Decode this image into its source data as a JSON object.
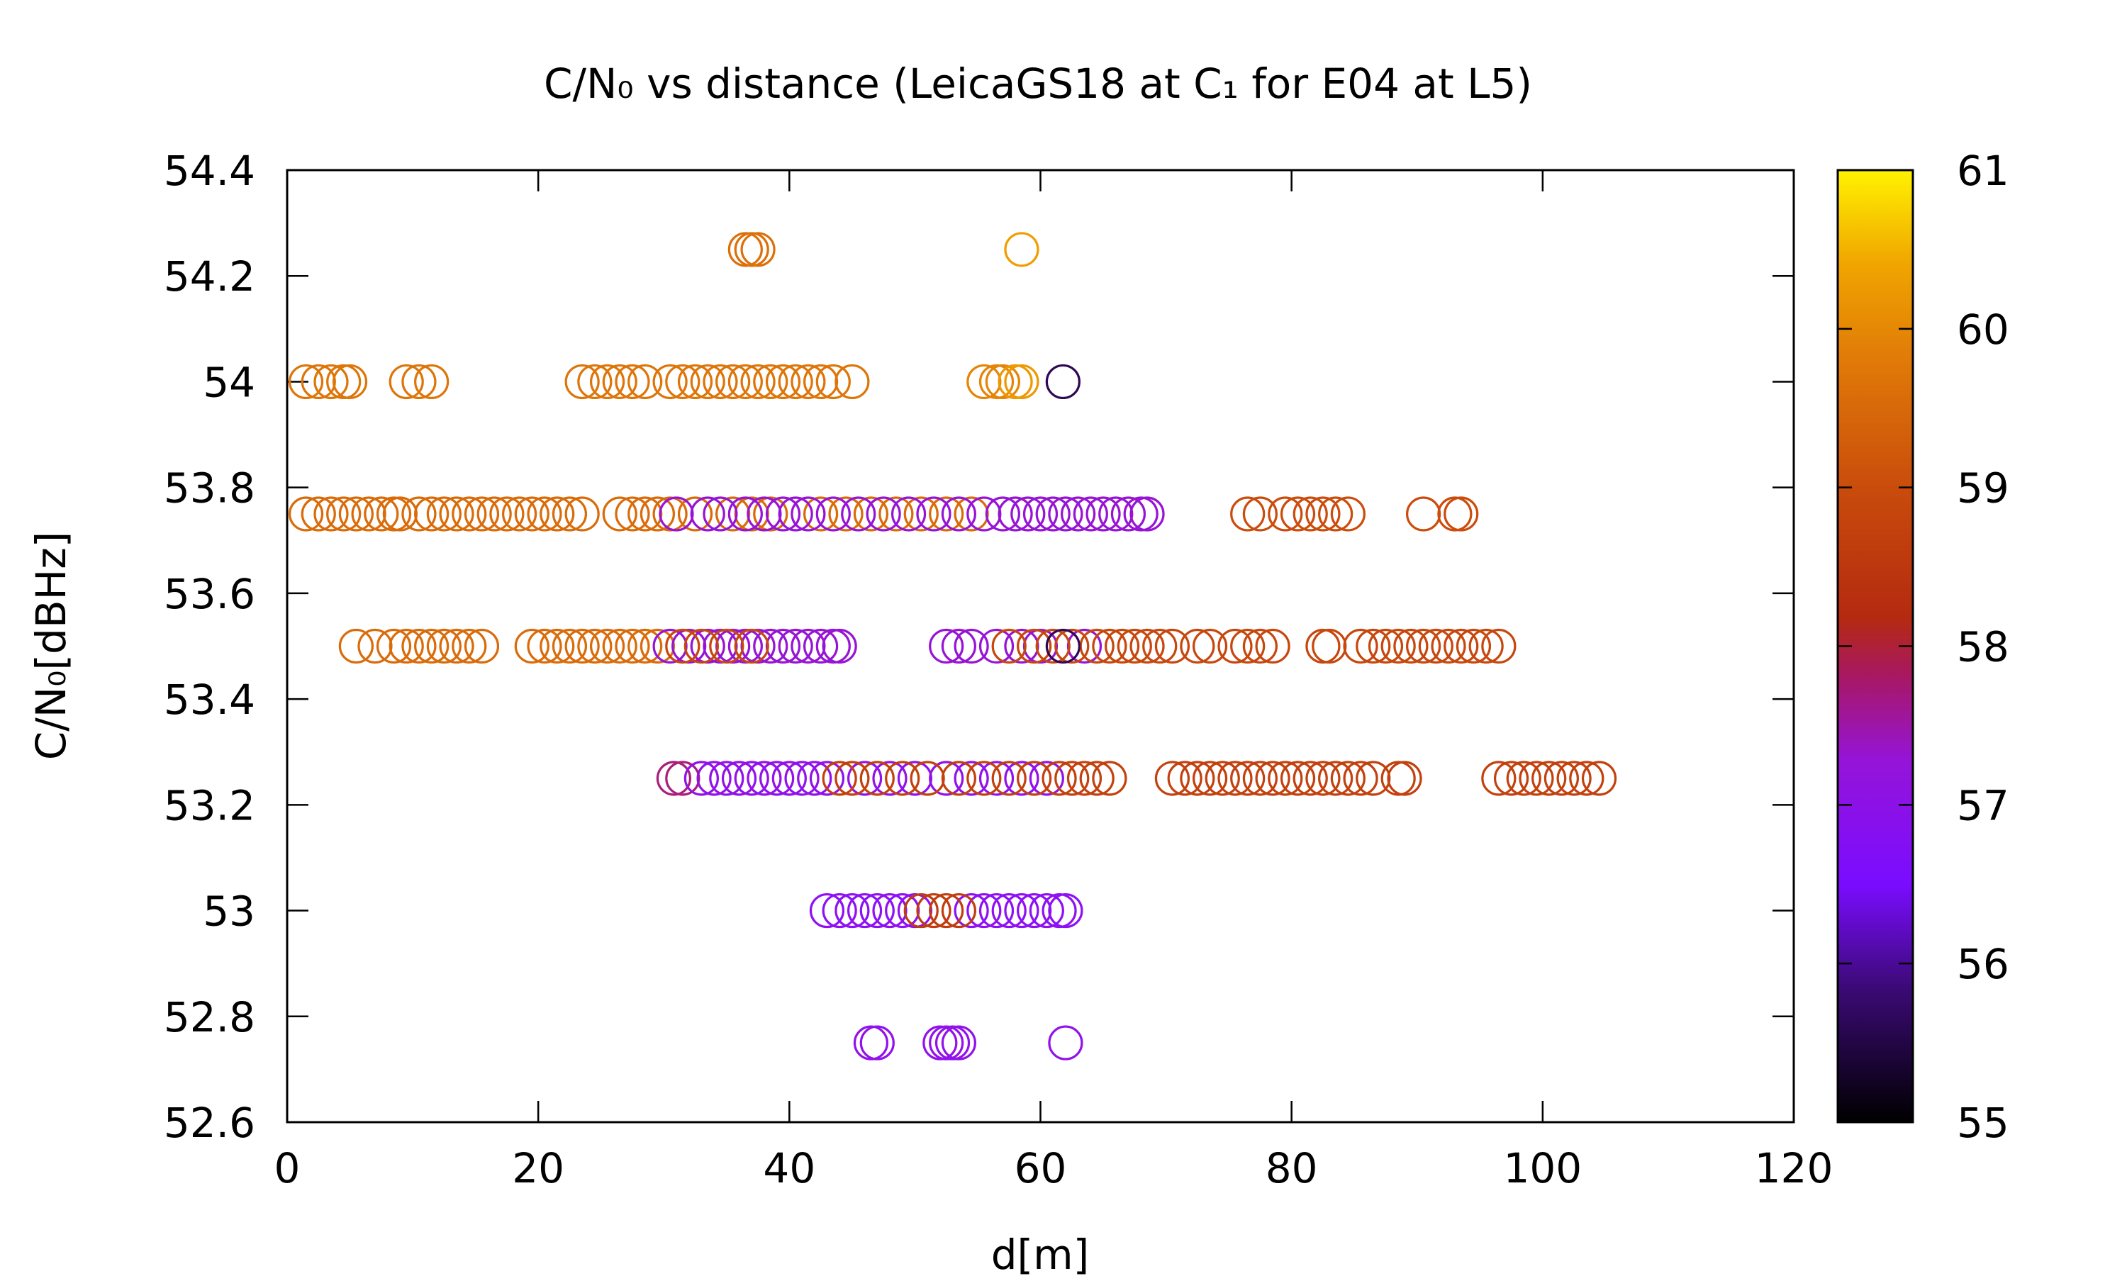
{
  "chart_data": {
    "type": "scatter",
    "title": "C/N₀ vs distance (LeicaGS18 at C₁ for E04 at L5)",
    "xlabel": "d[m]",
    "ylabel": "C/N₀[dBHz]",
    "xlim": [
      0,
      120
    ],
    "ylim": [
      52.6,
      54.4
    ],
    "x_ticks": [
      "0",
      "20",
      "40",
      "60",
      "80",
      "100",
      "120"
    ],
    "y_ticks": [
      "52.6",
      "52.8",
      "53",
      "53.2",
      "53.4",
      "53.6",
      "53.8",
      "54",
      "54.2",
      "54.4"
    ],
    "colorbar": {
      "range": [
        55,
        61
      ],
      "ticks": [
        "55",
        "56",
        "57",
        "58",
        "59",
        "60",
        "61"
      ],
      "palette": [
        "#000000",
        "#5a0fa0",
        "#8b10ff",
        "#a418b0",
        "#b42c12",
        "#d1540b",
        "#e07a08",
        "#f2a000",
        "#fff200"
      ]
    },
    "marker": "open-circle",
    "groups": [
      {
        "y": 54.25,
        "c": 59.3,
        "x": [
          36.5,
          37.0,
          37.5
        ]
      },
      {
        "y": 54.25,
        "c": 60.2,
        "x": [
          58.5
        ]
      },
      {
        "y": 54.0,
        "c": 59.4,
        "x": [
          1.5,
          2.5,
          3.5,
          4.5,
          5.0,
          9.5,
          10.5,
          11.5,
          23.5,
          24.5,
          25.5,
          26.5,
          27.5,
          28.5,
          30.5,
          31.5,
          32.5,
          33.5,
          34.5,
          35.5,
          36.5,
          37.5,
          38.5,
          39.5,
          40.5,
          41.5,
          42.5,
          43.5,
          45.0
        ]
      },
      {
        "y": 54.0,
        "c": 59.7,
        "x": [
          55.5,
          56.5,
          57.0
        ]
      },
      {
        "y": 54.0,
        "c": 60.1,
        "x": [
          58.0,
          58.5
        ]
      },
      {
        "y": 54.0,
        "c": 55.4,
        "x": [
          61.8
        ]
      },
      {
        "y": 53.75,
        "c": 59.2,
        "x": [
          1.5,
          2.5,
          3.5,
          4.5,
          5.5,
          6.5,
          7.5,
          8.5,
          9.0,
          10.5,
          11.5,
          12.5,
          13.5,
          14.5,
          15.5,
          16.5,
          17.5,
          18.5,
          19.5,
          20.5,
          21.5,
          22.5,
          23.5,
          26.5,
          27.5,
          28.5,
          29.5,
          30.5,
          32.5,
          35.5,
          37.0,
          38.5,
          42.5,
          44.5,
          46.5,
          48.5,
          50.5,
          52.5,
          54.5
        ]
      },
      {
        "y": 53.75,
        "c": 56.9,
        "x": [
          31.0,
          33.5,
          34.5,
          36.5,
          38.0,
          39.5,
          40.5,
          41.5,
          43.5,
          45.5,
          47.5,
          49.5,
          51.5,
          53.5,
          55.5,
          57.0,
          58.0,
          59.0,
          60.0,
          61.0,
          62.0,
          63.0,
          64.0,
          65.0,
          66.0,
          67.0,
          68.0,
          68.5
        ]
      },
      {
        "y": 53.75,
        "c": 58.6,
        "x": [
          76.5,
          77.5,
          79.5,
          80.5,
          81.5,
          82.5,
          83.5,
          84.5,
          90.5,
          93.0,
          93.5
        ]
      },
      {
        "y": 53.5,
        "c": 59.2,
        "x": [
          5.5,
          7.0,
          8.5,
          9.5,
          10.5,
          11.5,
          12.5,
          13.5,
          14.5,
          15.5,
          19.5,
          20.5,
          21.5,
          22.5,
          23.5,
          24.5,
          25.5,
          26.5,
          27.5,
          28.5,
          29.5
        ]
      },
      {
        "y": 53.5,
        "c": 56.9,
        "x": [
          30.5,
          32.0,
          33.5,
          34.5,
          35.5,
          36.5,
          37.5,
          38.5,
          39.5,
          40.5,
          41.5,
          42.5,
          43.5,
          44.0,
          52.5,
          53.5,
          54.5,
          56.5,
          58.5,
          60.0,
          63.5
        ]
      },
      {
        "y": 53.5,
        "c": 58.5,
        "x": [
          31.5,
          33.0,
          35.0,
          37.0,
          57.5,
          59.5,
          61.0,
          62.5,
          64.5,
          65.5,
          66.5,
          67.5,
          68.5,
          69.5,
          70.5,
          72.5,
          73.5,
          75.5,
          76.5,
          77.5,
          78.5,
          82.5,
          83.0,
          85.5,
          86.5,
          87.5,
          88.5,
          89.5,
          90.5,
          91.5,
          92.5,
          93.5,
          94.5,
          95.5,
          96.5
        ]
      },
      {
        "y": 53.5,
        "c": 55.4,
        "x": [
          61.8
        ]
      },
      {
        "y": 53.25,
        "c": 57.5,
        "x": [
          30.8,
          31.5
        ]
      },
      {
        "y": 53.25,
        "c": 56.7,
        "x": [
          33.0,
          34.0,
          35.0,
          36.0,
          37.0,
          38.0,
          39.0,
          40.0,
          41.0,
          42.0,
          43.0,
          46.0,
          48.0,
          50.0,
          52.5,
          54.5,
          56.5,
          58.5,
          60.5
        ]
      },
      {
        "y": 53.25,
        "c": 58.4,
        "x": [
          44.0,
          45.0,
          47.0,
          49.0,
          51.0,
          53.5,
          55.5,
          57.5,
          59.5,
          61.5,
          62.5,
          63.5,
          64.5,
          65.5,
          70.5,
          71.5,
          72.5,
          73.5,
          74.5,
          75.5,
          76.5,
          77.5,
          78.5,
          79.5,
          80.5,
          81.5,
          82.5,
          83.5,
          84.5,
          85.5,
          86.5,
          88.5,
          89.0,
          96.5,
          97.5,
          98.5,
          99.5,
          100.5,
          101.5,
          102.5,
          103.5,
          104.5
        ]
      },
      {
        "y": 53.0,
        "c": 56.6,
        "x": [
          43.0,
          44.0,
          45.0,
          46.0,
          47.0,
          48.0,
          49.0,
          50.0,
          54.5,
          55.5,
          56.5,
          57.5,
          58.5,
          59.5,
          60.5,
          61.5,
          62.0
        ]
      },
      {
        "y": 53.0,
        "c": 58.3,
        "x": [
          50.5,
          51.5,
          52.5,
          53.5
        ]
      },
      {
        "y": 52.75,
        "c": 56.7,
        "x": [
          46.5,
          47.0,
          52.0,
          52.5,
          53.0,
          53.5,
          62.0
        ]
      }
    ]
  }
}
